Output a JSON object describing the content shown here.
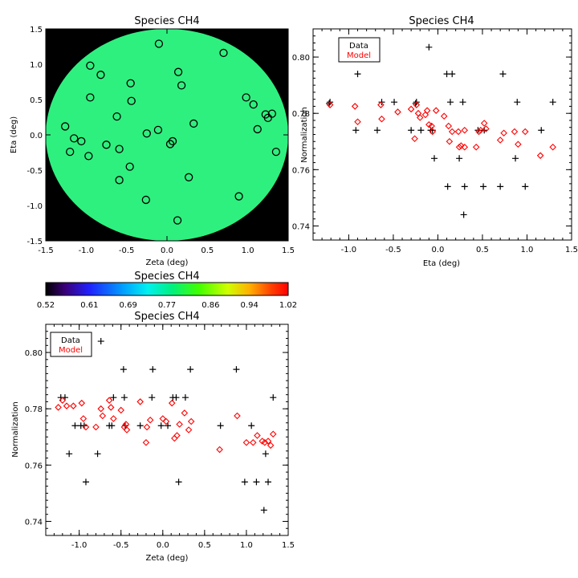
{
  "map_panel": {
    "title": "Species CH4",
    "xlabel": "Zeta (deg)",
    "ylabel": "Eta (deg)",
    "xlim": [
      -1.5,
      1.5
    ],
    "ylim": [
      -1.5,
      1.5
    ],
    "xticks": [
      "-1.5",
      "-1.0",
      "-0.5",
      "0.0",
      "0.5",
      "1.0",
      "1.5"
    ],
    "yticks": [
      "-1.5",
      "-1.0",
      "-0.5",
      "0.0",
      "0.5",
      "1.0",
      "1.5"
    ],
    "background_color": "#000000",
    "disk_color": "#2ef07f",
    "disk_radius_deg": 1.5
  },
  "colorbar": {
    "title": "Species CH4",
    "labels": [
      "0.52",
      "0.61",
      "0.69",
      "0.77",
      "0.86",
      "0.94",
      "1.02"
    ],
    "min": 0.52,
    "max": 1.02
  },
  "eta_panel": {
    "title": "Species CH4",
    "xlabel": "Eta (deg)",
    "ylabel": "Normalization",
    "xticks": [
      "-1.0",
      "-0.5",
      "0.0",
      "0.5",
      "1.0",
      "1.5"
    ],
    "yticks": [
      "0.74",
      "0.76",
      "0.78",
      "0.80"
    ],
    "legend_data": "Data",
    "legend_model": "Model",
    "data_color": "#000000",
    "model_color": "#ff0000"
  },
  "zeta_panel": {
    "title": "Species CH4",
    "xlabel": "Zeta (deg)",
    "ylabel": "Normalization",
    "xticks": [
      "-1.0",
      "-0.5",
      "0.0",
      "0.5",
      "1.0",
      "1.5"
    ],
    "yticks": [
      "0.74",
      "0.76",
      "0.78",
      "0.80"
    ],
    "legend_data": "Data",
    "legend_model": "Model",
    "data_color": "#000000",
    "model_color": "#ff0000"
  },
  "chart_data": [
    {
      "type": "scatter",
      "panel": "map",
      "title": "Species CH4",
      "xlabel": "Zeta (deg)",
      "ylabel": "Eta (deg)",
      "xlim": [
        -1.5,
        1.5
      ],
      "ylim": [
        -1.5,
        1.5
      ],
      "points": [
        {
          "zeta": -0.95,
          "eta": 0.98
        },
        {
          "zeta": -0.82,
          "eta": 0.85
        },
        {
          "zeta": -0.1,
          "eta": 1.29
        },
        {
          "zeta": 0.7,
          "eta": 1.16
        },
        {
          "zeta": 0.14,
          "eta": 0.89
        },
        {
          "zeta": 0.18,
          "eta": 0.7
        },
        {
          "zeta": -0.45,
          "eta": 0.73
        },
        {
          "zeta": -0.44,
          "eta": 0.48
        },
        {
          "zeta": -0.95,
          "eta": 0.53
        },
        {
          "zeta": -1.26,
          "eta": 0.12
        },
        {
          "zeta": -1.2,
          "eta": -0.24
        },
        {
          "zeta": -1.15,
          "eta": -0.05
        },
        {
          "zeta": -1.06,
          "eta": -0.09
        },
        {
          "zeta": -0.97,
          "eta": -0.3
        },
        {
          "zeta": -0.75,
          "eta": -0.14
        },
        {
          "zeta": -0.62,
          "eta": 0.26
        },
        {
          "zeta": -0.59,
          "eta": -0.2
        },
        {
          "zeta": -0.59,
          "eta": -0.64
        },
        {
          "zeta": -0.46,
          "eta": -0.45
        },
        {
          "zeta": -0.25,
          "eta": 0.02
        },
        {
          "zeta": -0.11,
          "eta": 0.07
        },
        {
          "zeta": 0.04,
          "eta": -0.13
        },
        {
          "zeta": 0.07,
          "eta": -0.09
        },
        {
          "zeta": 0.33,
          "eta": 0.16
        },
        {
          "zeta": 0.27,
          "eta": -0.6
        },
        {
          "zeta": -0.26,
          "eta": -0.92
        },
        {
          "zeta": 0.13,
          "eta": -1.21
        },
        {
          "zeta": 0.89,
          "eta": -0.87
        },
        {
          "zeta": 0.98,
          "eta": 0.53
        },
        {
          "zeta": 1.07,
          "eta": 0.43
        },
        {
          "zeta": 1.12,
          "eta": 0.08
        },
        {
          "zeta": 1.22,
          "eta": 0.29
        },
        {
          "zeta": 1.25,
          "eta": 0.24
        },
        {
          "zeta": 1.3,
          "eta": 0.3
        },
        {
          "zeta": 1.35,
          "eta": -0.24
        }
      ]
    },
    {
      "type": "scatter",
      "panel": "eta",
      "title": "Species CH4",
      "xlabel": "Eta (deg)",
      "ylabel": "Normalization",
      "xlim": [
        -1.4,
        1.5
      ],
      "ylim": [
        0.735,
        0.81
      ],
      "series": [
        {
          "name": "Data",
          "marker": "plus",
          "points": [
            [
              -1.21,
              0.784
            ],
            [
              -1.22,
              0.7835
            ],
            [
              -0.9,
              0.794
            ],
            [
              -0.92,
              0.774
            ],
            [
              -0.68,
              0.774
            ],
            [
              -0.63,
              0.784
            ],
            [
              -0.49,
              0.784
            ],
            [
              -0.3,
              0.774
            ],
            [
              -0.24,
              0.784
            ],
            [
              -0.25,
              0.7835
            ],
            [
              -0.19,
              0.774
            ],
            [
              -0.1,
              0.8035
            ],
            [
              -0.08,
              0.774
            ],
            [
              -0.06,
              0.774
            ],
            [
              -0.04,
              0.764
            ],
            [
              0.1,
              0.794
            ],
            [
              0.11,
              0.754
            ],
            [
              0.14,
              0.784
            ],
            [
              0.16,
              0.794
            ],
            [
              0.24,
              0.764
            ],
            [
              0.28,
              0.784
            ],
            [
              0.29,
              0.744
            ],
            [
              0.3,
              0.754
            ],
            [
              0.45,
              0.774
            ],
            [
              0.51,
              0.754
            ],
            [
              0.52,
              0.774
            ],
            [
              0.7,
              0.754
            ],
            [
              0.73,
              0.794
            ],
            [
              0.87,
              0.764
            ],
            [
              0.89,
              0.784
            ],
            [
              0.98,
              0.754
            ],
            [
              1.16,
              0.774
            ],
            [
              1.29,
              0.784
            ]
          ]
        },
        {
          "name": "Model",
          "marker": "diamond",
          "points": [
            [
              -1.21,
              0.783
            ],
            [
              -0.93,
              0.7825
            ],
            [
              -0.9,
              0.777
            ],
            [
              -0.64,
              0.783
            ],
            [
              -0.63,
              0.778
            ],
            [
              -0.45,
              0.7805
            ],
            [
              -0.3,
              0.7815
            ],
            [
              -0.24,
              0.783
            ],
            [
              -0.22,
              0.78
            ],
            [
              -0.2,
              0.7785
            ],
            [
              -0.26,
              0.771
            ],
            [
              -0.14,
              0.7795
            ],
            [
              -0.12,
              0.781
            ],
            [
              -0.1,
              0.776
            ],
            [
              -0.07,
              0.7755
            ],
            [
              -0.06,
              0.7735
            ],
            [
              -0.02,
              0.781
            ],
            [
              0.07,
              0.779
            ],
            [
              0.12,
              0.7755
            ],
            [
              0.13,
              0.77
            ],
            [
              0.16,
              0.7735
            ],
            [
              0.23,
              0.7735
            ],
            [
              0.24,
              0.768
            ],
            [
              0.26,
              0.7685
            ],
            [
              0.3,
              0.768
            ],
            [
              0.3,
              0.774
            ],
            [
              0.43,
              0.768
            ],
            [
              0.46,
              0.7735
            ],
            [
              0.48,
              0.774
            ],
            [
              0.52,
              0.7765
            ],
            [
              0.54,
              0.7745
            ],
            [
              0.7,
              0.7705
            ],
            [
              0.74,
              0.773
            ],
            [
              0.86,
              0.7735
            ],
            [
              0.9,
              0.769
            ],
            [
              0.98,
              0.7735
            ],
            [
              1.15,
              0.765
            ],
            [
              1.29,
              0.768
            ]
          ]
        }
      ]
    },
    {
      "type": "scatter",
      "panel": "zeta",
      "title": "Species CH4",
      "xlabel": "Zeta (deg)",
      "ylabel": "Normalization",
      "xlim": [
        -1.4,
        1.5
      ],
      "ylim": [
        0.735,
        0.81
      ],
      "series": [
        {
          "name": "Data",
          "marker": "plus",
          "points": [
            [
              -1.22,
              0.784
            ],
            [
              -1.17,
              0.784
            ],
            [
              -1.12,
              0.764
            ],
            [
              -1.05,
              0.774
            ],
            [
              -0.98,
              0.774
            ],
            [
              -0.94,
              0.774
            ],
            [
              -0.92,
              0.754
            ],
            [
              -0.78,
              0.764
            ],
            [
              -0.74,
              0.804
            ],
            [
              -0.64,
              0.774
            ],
            [
              -0.61,
              0.774
            ],
            [
              -0.59,
              0.784
            ],
            [
              -0.47,
              0.794
            ],
            [
              -0.46,
              0.784
            ],
            [
              -0.45,
              0.774
            ],
            [
              -0.27,
              0.774
            ],
            [
              -0.12,
              0.794
            ],
            [
              -0.13,
              0.784
            ],
            [
              -0.02,
              0.774
            ],
            [
              0.06,
              0.774
            ],
            [
              0.12,
              0.784
            ],
            [
              0.16,
              0.784
            ],
            [
              0.19,
              0.754
            ],
            [
              0.27,
              0.784
            ],
            [
              0.33,
              0.794
            ],
            [
              0.69,
              0.774
            ],
            [
              0.88,
              0.794
            ],
            [
              0.98,
              0.754
            ],
            [
              1.06,
              0.774
            ],
            [
              1.12,
              0.754
            ],
            [
              1.21,
              0.744
            ],
            [
              1.23,
              0.764
            ],
            [
              1.26,
              0.754
            ],
            [
              1.32,
              0.784
            ]
          ]
        },
        {
          "name": "Model",
          "marker": "diamond",
          "points": [
            [
              -1.25,
              0.7805
            ],
            [
              -1.2,
              0.783
            ],
            [
              -1.15,
              0.781
            ],
            [
              -1.07,
              0.781
            ],
            [
              -0.97,
              0.782
            ],
            [
              -0.95,
              0.7765
            ],
            [
              -0.92,
              0.7735
            ],
            [
              -0.8,
              0.7735
            ],
            [
              -0.74,
              0.78
            ],
            [
              -0.72,
              0.7775
            ],
            [
              -0.62,
              0.7805
            ],
            [
              -0.64,
              0.783
            ],
            [
              -0.59,
              0.7765
            ],
            [
              -0.5,
              0.7795
            ],
            [
              -0.46,
              0.7735
            ],
            [
              -0.44,
              0.7745
            ],
            [
              -0.43,
              0.7725
            ],
            [
              -0.27,
              0.7825
            ],
            [
              -0.2,
              0.768
            ],
            [
              -0.15,
              0.776
            ],
            [
              -0.19,
              0.7735
            ],
            [
              0.0,
              0.7765
            ],
            [
              0.04,
              0.7755
            ],
            [
              0.11,
              0.782
            ],
            [
              0.14,
              0.7695
            ],
            [
              0.17,
              0.7705
            ],
            [
              0.2,
              0.7745
            ],
            [
              0.26,
              0.7785
            ],
            [
              0.31,
              0.7725
            ],
            [
              0.34,
              0.7755
            ],
            [
              0.68,
              0.7655
            ],
            [
              0.89,
              0.7775
            ],
            [
              1.0,
              0.768
            ],
            [
              1.08,
              0.768
            ],
            [
              1.13,
              0.7705
            ],
            [
              1.19,
              0.7685
            ],
            [
              1.22,
              0.768
            ],
            [
              1.26,
              0.7685
            ],
            [
              1.29,
              0.767
            ],
            [
              1.32,
              0.771
            ]
          ]
        }
      ]
    }
  ]
}
